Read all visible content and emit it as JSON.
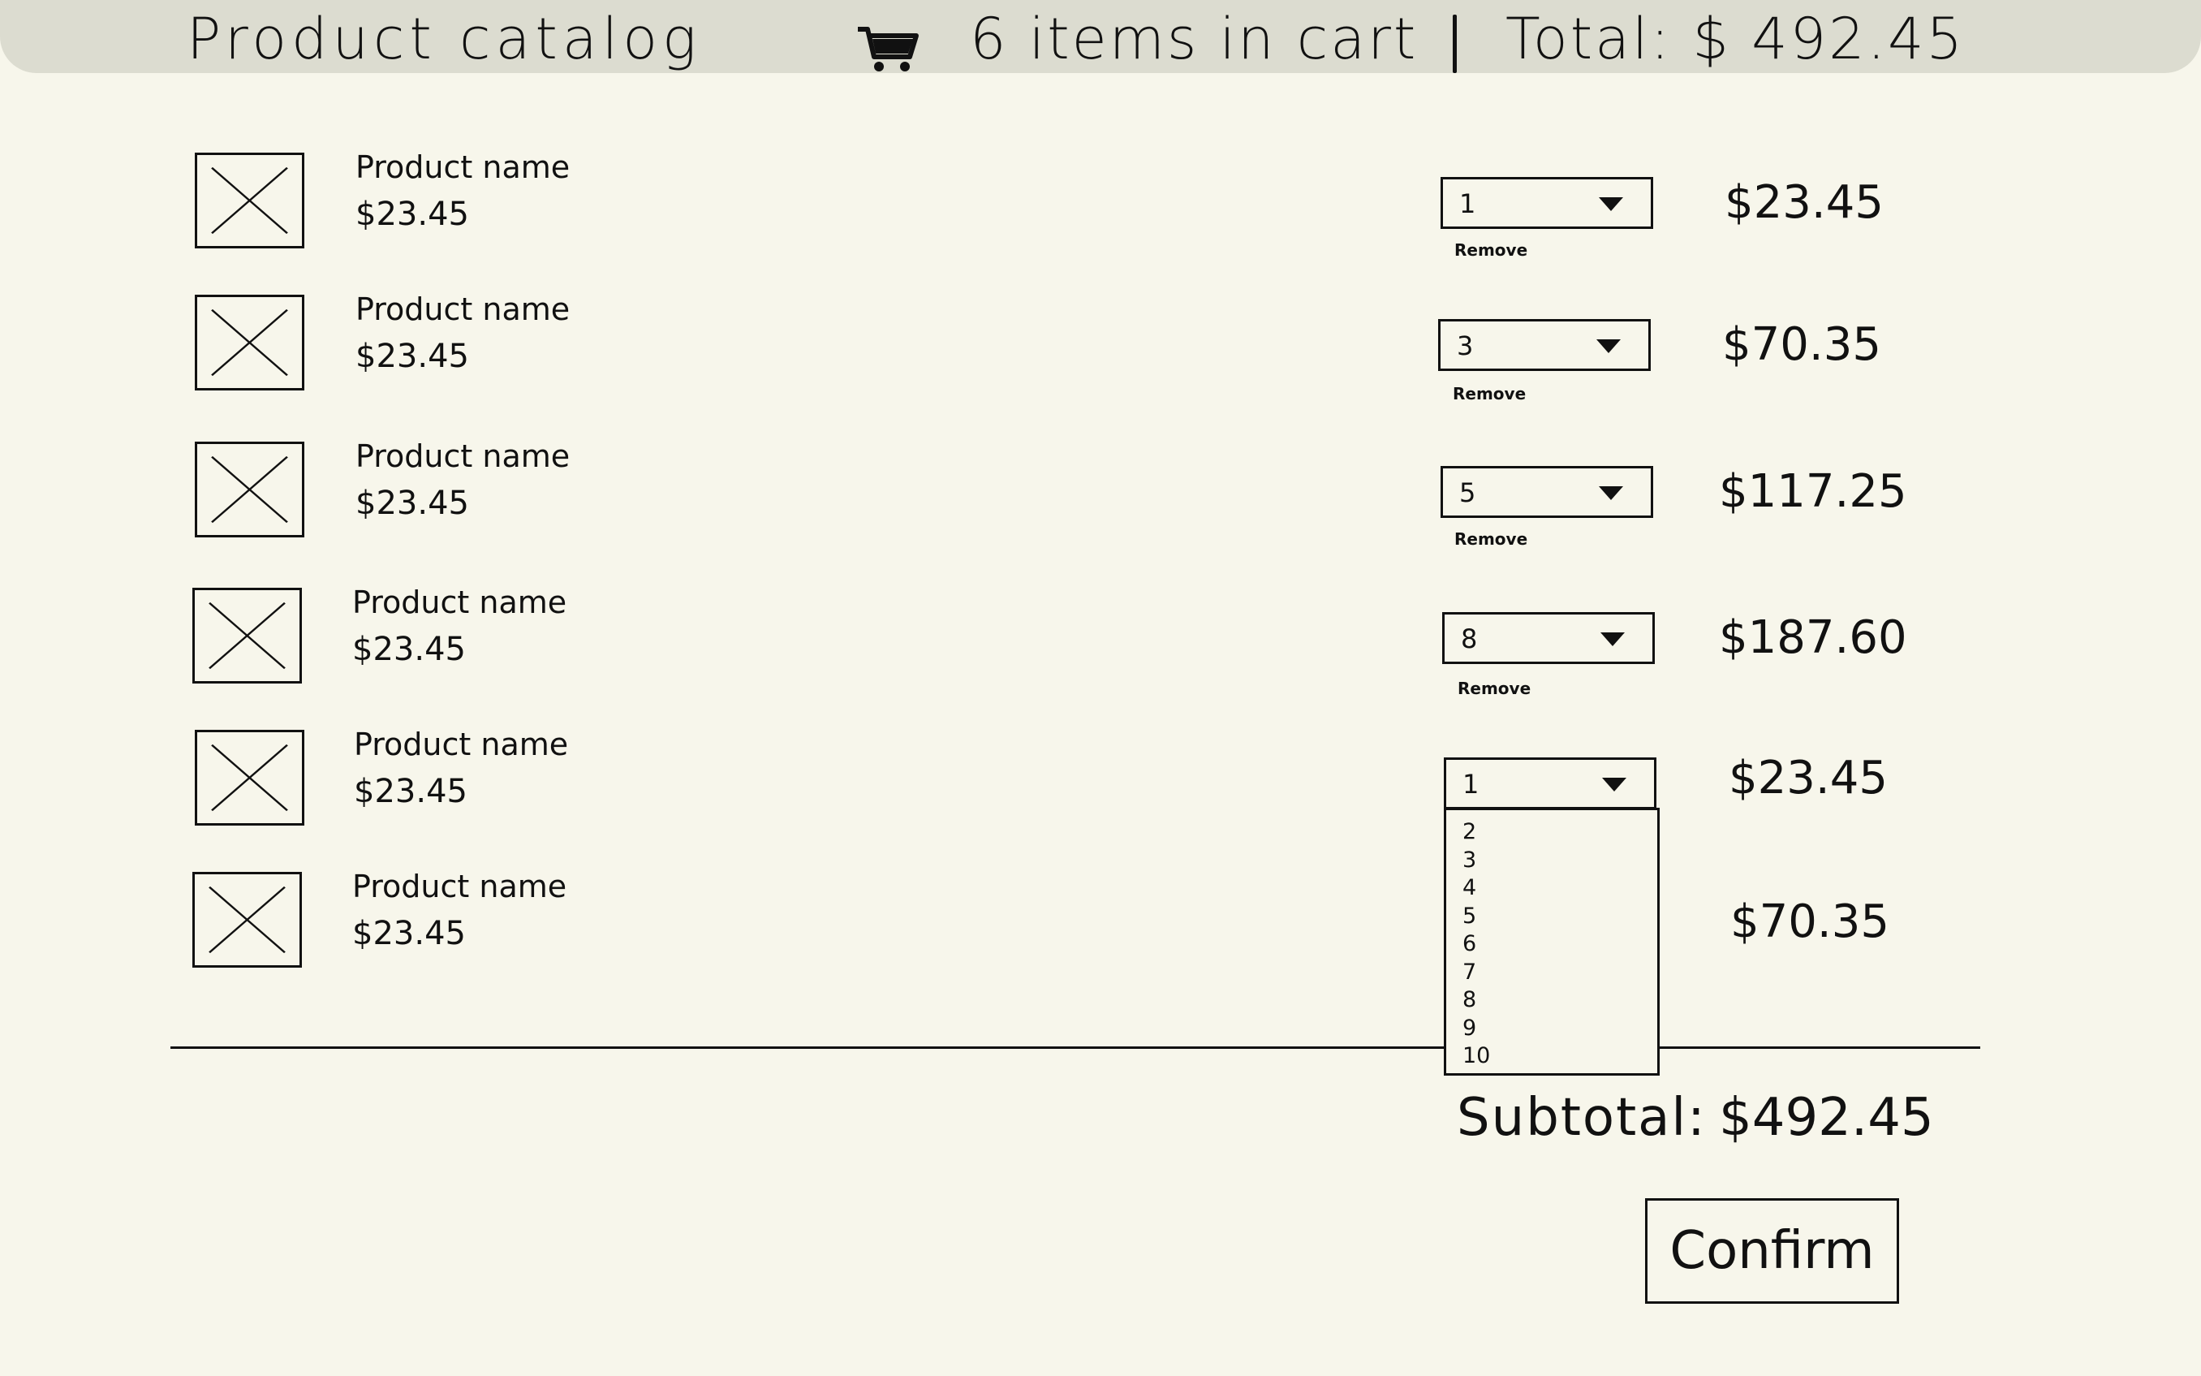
{
  "header": {
    "title": "Product catalog",
    "cart_icon": "shopping-cart-icon",
    "cart_count_label": "6 items in cart",
    "cart_total_label": "Total: $ 492.45"
  },
  "cart": {
    "items": [
      {
        "name": "Product name",
        "price": "$23.45",
        "quantity": "1",
        "remove_label": "Remove",
        "line_total": "$23.45",
        "thumbnail_icon": "image-placeholder-icon"
      },
      {
        "name": "Product name",
        "price": "$23.45",
        "quantity": "3",
        "remove_label": "Remove",
        "line_total": "$70.35",
        "thumbnail_icon": "image-placeholder-icon"
      },
      {
        "name": "Product name",
        "price": "$23.45",
        "quantity": "5",
        "remove_label": "Remove",
        "line_total": "$117.25",
        "thumbnail_icon": "image-placeholder-icon"
      },
      {
        "name": "Product name",
        "price": "$23.45",
        "quantity": "8",
        "remove_label": "Remove",
        "line_total": "$187.60",
        "thumbnail_icon": "image-placeholder-icon"
      },
      {
        "name": "Product name",
        "price": "$23.45",
        "quantity": "1",
        "line_total": "$23.45",
        "thumbnail_icon": "image-placeholder-icon"
      },
      {
        "name": "Product name",
        "price": "$23.45",
        "line_total": "$70.35",
        "thumbnail_icon": "image-placeholder-icon"
      }
    ],
    "open_dropdown_options": [
      "2",
      "3",
      "4",
      "5",
      "6",
      "7",
      "8",
      "9",
      "10"
    ]
  },
  "summary": {
    "subtotal_label": "Subtotal:",
    "subtotal_value": "$492.45",
    "confirm_label": "Confirm"
  }
}
